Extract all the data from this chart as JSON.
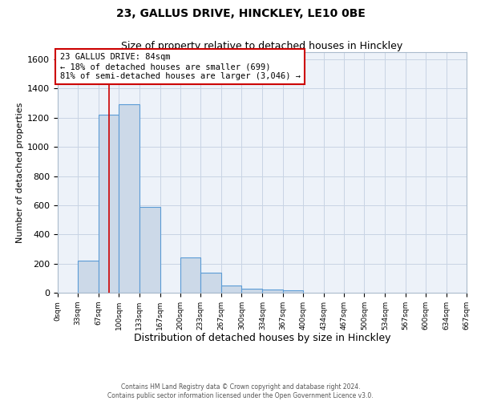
{
  "title": "23, GALLUS DRIVE, HINCKLEY, LE10 0BE",
  "subtitle": "Size of property relative to detached houses in Hinckley",
  "xlabel": "Distribution of detached houses by size in Hinckley",
  "ylabel": "Number of detached properties",
  "bin_edges": [
    0,
    33,
    67,
    100,
    133,
    167,
    200,
    233,
    267,
    300,
    334,
    367,
    400,
    434,
    467,
    500,
    534,
    567,
    600,
    634,
    667
  ],
  "bar_heights": [
    0,
    220,
    1220,
    1290,
    590,
    0,
    240,
    140,
    50,
    30,
    20,
    15,
    0,
    0,
    0,
    0,
    0,
    0,
    0,
    0
  ],
  "bar_color": "#ccd9e8",
  "bar_edge_color": "#5b9bd5",
  "property_size": 84,
  "vline_color": "#cc0000",
  "annotation_text": "23 GALLUS DRIVE: 84sqm\n← 18% of detached houses are smaller (699)\n81% of semi-detached houses are larger (3,046) →",
  "annotation_box_facecolor": "#ffffff",
  "annotation_box_edgecolor": "#cc0000",
  "ylim": [
    0,
    1650
  ],
  "xlim": [
    0,
    667
  ],
  "ytick_values": [
    0,
    200,
    400,
    600,
    800,
    1000,
    1200,
    1400,
    1600
  ],
  "xtick_labels": [
    "0sqm",
    "33sqm",
    "67sqm",
    "100sqm",
    "133sqm",
    "167sqm",
    "200sqm",
    "233sqm",
    "267sqm",
    "300sqm",
    "334sqm",
    "367sqm",
    "400sqm",
    "434sqm",
    "467sqm",
    "500sqm",
    "534sqm",
    "567sqm",
    "600sqm",
    "634sqm",
    "667sqm"
  ],
  "grid_color": "#c8d4e4",
  "bg_color": "#edf2f9",
  "footer_line1": "Contains HM Land Registry data © Crown copyright and database right 2024.",
  "footer_line2": "Contains public sector information licensed under the Open Government Licence v3.0.",
  "title_fontsize": 10,
  "subtitle_fontsize": 9,
  "ylabel_fontsize": 8,
  "xlabel_fontsize": 9,
  "ytick_fontsize": 8,
  "xtick_fontsize": 6.5,
  "footer_fontsize": 5.5,
  "annotation_fontsize": 7.5
}
